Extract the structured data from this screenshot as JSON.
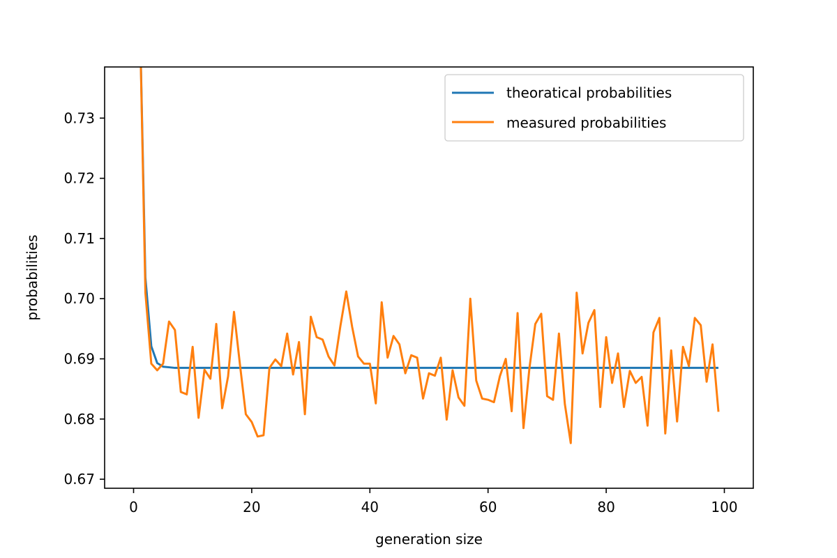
{
  "chart_data": {
    "type": "line",
    "xlabel": "generation size",
    "ylabel": "probabilities",
    "xlim": [
      -4.9,
      104.9
    ],
    "ylim": [
      0.6685,
      0.7385
    ],
    "xticks": [
      0,
      20,
      40,
      60,
      80,
      100
    ],
    "yticks": [
      0.67,
      0.68,
      0.69,
      0.7,
      0.71,
      0.72,
      0.73
    ],
    "xtick_labels": [
      "0",
      "20",
      "40",
      "60",
      "80",
      "100"
    ],
    "ytick_labels": [
      "0.67",
      "0.68",
      "0.69",
      "0.70",
      "0.71",
      "0.72",
      "0.73"
    ],
    "grid": false,
    "legend_position": "top-right",
    "series": [
      {
        "name": "theoratical probabilities",
        "color": "#1f77b4",
        "x": [
          1,
          2,
          3,
          4,
          5,
          6,
          7,
          8,
          9,
          10,
          11,
          12,
          13,
          14,
          15,
          16,
          17,
          18,
          19,
          20,
          21,
          22,
          23,
          24,
          25,
          26,
          27,
          28,
          29,
          30,
          31,
          32,
          33,
          34,
          35,
          36,
          37,
          38,
          39,
          40,
          41,
          42,
          43,
          44,
          45,
          46,
          47,
          48,
          49,
          50,
          51,
          52,
          53,
          54,
          55,
          56,
          57,
          58,
          59,
          60,
          61,
          62,
          63,
          64,
          65,
          66,
          67,
          68,
          69,
          70,
          71,
          72,
          73,
          74,
          75,
          76,
          77,
          78,
          79,
          80,
          81,
          82,
          83,
          84,
          85,
          86,
          87,
          88,
          89,
          90,
          91,
          92,
          93,
          94,
          95,
          96,
          97,
          98,
          99
        ],
        "y": [
          0.75,
          0.7035,
          0.6921,
          0.6893,
          0.6887,
          0.6886,
          0.6885,
          0.6885,
          0.6885,
          0.6885,
          0.6885,
          0.6885,
          0.6885,
          0.6885,
          0.6885,
          0.6885,
          0.6885,
          0.6885,
          0.6885,
          0.6885,
          0.6885,
          0.6885,
          0.6885,
          0.6885,
          0.6885,
          0.6885,
          0.6885,
          0.6885,
          0.6885,
          0.6885,
          0.6885,
          0.6885,
          0.6885,
          0.6885,
          0.6885,
          0.6885,
          0.6885,
          0.6885,
          0.6885,
          0.6885,
          0.6885,
          0.6885,
          0.6885,
          0.6885,
          0.6885,
          0.6885,
          0.6885,
          0.6885,
          0.6885,
          0.6885,
          0.6885,
          0.6885,
          0.6885,
          0.6885,
          0.6885,
          0.6885,
          0.6885,
          0.6885,
          0.6885,
          0.6885,
          0.6885,
          0.6885,
          0.6885,
          0.6885,
          0.6885,
          0.6885,
          0.6885,
          0.6885,
          0.6885,
          0.6885,
          0.6885,
          0.6885,
          0.6885,
          0.6885,
          0.6885,
          0.6885,
          0.6885,
          0.6885,
          0.6885,
          0.6885,
          0.6885,
          0.6885,
          0.6885,
          0.6885,
          0.6885,
          0.6885,
          0.6885,
          0.6885,
          0.6885,
          0.6885,
          0.6885,
          0.6885,
          0.6885,
          0.6885,
          0.6885,
          0.6885,
          0.6885,
          0.6885,
          0.6885
        ]
      },
      {
        "name": "measured probabilities",
        "color": "#ff7f0e",
        "x": [
          1,
          2,
          3,
          4,
          5,
          6,
          7,
          8,
          9,
          10,
          11,
          12,
          13,
          14,
          15,
          16,
          17,
          18,
          19,
          20,
          21,
          22,
          23,
          24,
          25,
          26,
          27,
          28,
          29,
          30,
          31,
          32,
          33,
          34,
          35,
          36,
          37,
          38,
          39,
          40,
          41,
          42,
          43,
          44,
          45,
          46,
          47,
          48,
          49,
          50,
          51,
          52,
          53,
          54,
          55,
          56,
          57,
          58,
          59,
          60,
          61,
          62,
          63,
          64,
          65,
          66,
          67,
          68,
          69,
          70,
          71,
          72,
          73,
          74,
          75,
          76,
          77,
          78,
          79,
          80,
          81,
          82,
          83,
          84,
          85,
          86,
          87,
          88,
          89,
          90,
          91,
          92,
          93,
          94,
          95,
          96,
          97,
          98,
          99
        ],
        "y": [
          0.75,
          0.701,
          0.6892,
          0.6881,
          0.6892,
          0.6962,
          0.6948,
          0.6845,
          0.6841,
          0.692,
          0.6802,
          0.6882,
          0.6867,
          0.6958,
          0.6818,
          0.6871,
          0.6978,
          0.6891,
          0.6808,
          0.6795,
          0.6771,
          0.6773,
          0.6885,
          0.6899,
          0.6888,
          0.6942,
          0.6874,
          0.6928,
          0.6808,
          0.697,
          0.6936,
          0.6932,
          0.6904,
          0.6889,
          0.6954,
          0.7012,
          0.6953,
          0.6904,
          0.6892,
          0.6892,
          0.6826,
          0.6994,
          0.6902,
          0.6938,
          0.6924,
          0.6876,
          0.6906,
          0.6902,
          0.6834,
          0.6876,
          0.6872,
          0.6902,
          0.6799,
          0.6881,
          0.6836,
          0.6822,
          0.7,
          0.6864,
          0.6834,
          0.6832,
          0.6828,
          0.6871,
          0.69,
          0.6813,
          0.6976,
          0.6785,
          0.6884,
          0.6958,
          0.6975,
          0.6838,
          0.6832,
          0.6942,
          0.6825,
          0.676,
          0.701,
          0.6909,
          0.696,
          0.6981,
          0.682,
          0.6936,
          0.686,
          0.6909,
          0.682,
          0.688,
          0.686,
          0.687,
          0.6789,
          0.6944,
          0.6968,
          0.6776,
          0.6914,
          0.6796,
          0.692,
          0.6888,
          0.6968,
          0.6956,
          0.6862,
          0.6924,
          0.6812
        ]
      }
    ]
  }
}
